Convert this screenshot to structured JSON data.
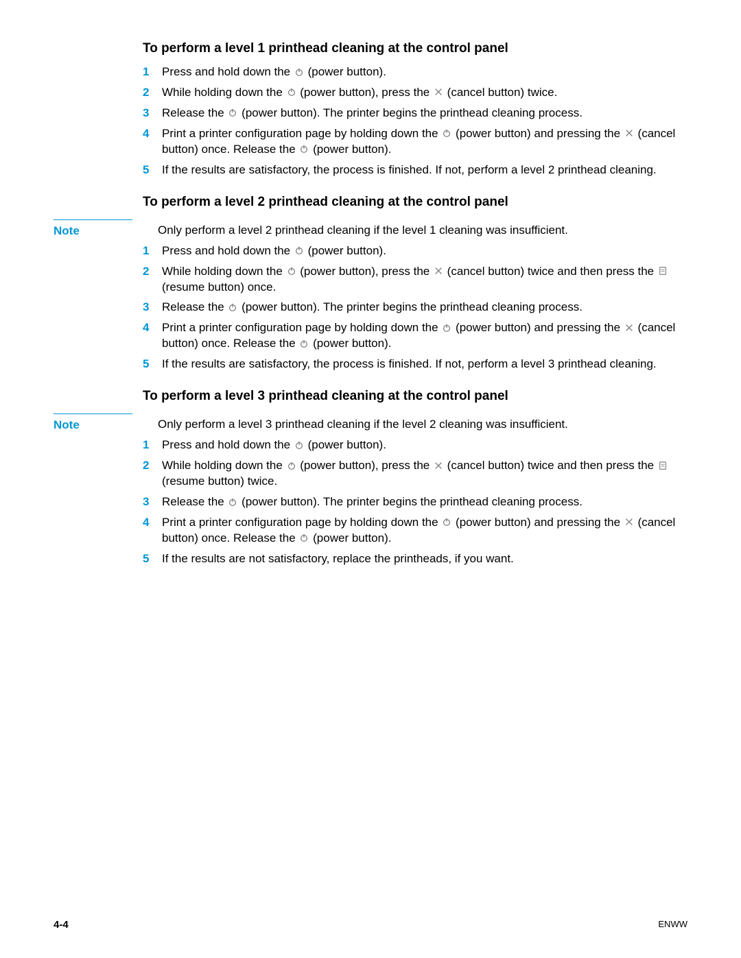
{
  "colors": {
    "accent": "#0096d6",
    "text": "#000000",
    "icon": "#808080"
  },
  "icons": {
    "power": "power-icon",
    "cancel": "cancel-icon",
    "resume": "resume-icon"
  },
  "sections": [
    {
      "heading": "To perform a level 1 printhead cleaning at the control panel",
      "note": null,
      "steps": [
        {
          "n": "1",
          "parts": [
            "Press and hold down the ",
            {
              "icon": "power"
            },
            " (power button)."
          ]
        },
        {
          "n": "2",
          "parts": [
            "While holding down the ",
            {
              "icon": "power"
            },
            " (power button), press the ",
            {
              "icon": "cancel"
            },
            " (cancel button) twice."
          ]
        },
        {
          "n": "3",
          "parts": [
            "Release the ",
            {
              "icon": "power"
            },
            " (power button). The printer begins the printhead cleaning process."
          ]
        },
        {
          "n": "4",
          "parts": [
            "Print a printer configuration page by holding down the ",
            {
              "icon": "power"
            },
            " (power button) and pressing the ",
            {
              "icon": "cancel"
            },
            " (cancel button) once. Release the ",
            {
              "icon": "power"
            },
            " (power button)."
          ]
        },
        {
          "n": "5",
          "parts": [
            "If the results are satisfactory, the process is finished. If not, perform a level 2 printhead cleaning."
          ]
        }
      ]
    },
    {
      "heading": "To perform a level 2 printhead cleaning at the control panel",
      "note": "Only perform a level 2 printhead cleaning if the level 1 cleaning was insufficient.",
      "steps": [
        {
          "n": "1",
          "parts": [
            "Press and hold down the ",
            {
              "icon": "power"
            },
            " (power button)."
          ]
        },
        {
          "n": "2",
          "parts": [
            "While holding down the ",
            {
              "icon": "power"
            },
            " (power button), press the ",
            {
              "icon": "cancel"
            },
            " (cancel button) twice and then press the ",
            {
              "icon": "resume"
            },
            " (resume button) once."
          ]
        },
        {
          "n": "3",
          "parts": [
            "Release the ",
            {
              "icon": "power"
            },
            " (power button). The printer begins the printhead cleaning process."
          ]
        },
        {
          "n": "4",
          "parts": [
            "Print a printer configuration page by holding down the ",
            {
              "icon": "power"
            },
            " (power button) and pressing the ",
            {
              "icon": "cancel"
            },
            " (cancel button) once. Release the ",
            {
              "icon": "power"
            },
            " (power button)."
          ]
        },
        {
          "n": "5",
          "parts": [
            "If the results are satisfactory, the process is finished. If not, perform a level 3 printhead cleaning."
          ]
        }
      ]
    },
    {
      "heading": "To perform a level 3 printhead cleaning at the control panel",
      "note": "Only perform a level 3 printhead cleaning if the level 2 cleaning was insufficient.",
      "steps": [
        {
          "n": "1",
          "parts": [
            "Press and hold down the ",
            {
              "icon": "power"
            },
            " (power button)."
          ]
        },
        {
          "n": "2",
          "parts": [
            "While holding down the ",
            {
              "icon": "power"
            },
            " (power button), press the ",
            {
              "icon": "cancel"
            },
            " (cancel button) twice and then press the ",
            {
              "icon": "resume"
            },
            " (resume button) twice."
          ]
        },
        {
          "n": "3",
          "parts": [
            "Release the ",
            {
              "icon": "power"
            },
            " (power button). The printer begins the printhead cleaning process."
          ]
        },
        {
          "n": "4",
          "parts": [
            "Print a printer configuration page by holding down the ",
            {
              "icon": "power"
            },
            " (power button) and pressing the ",
            {
              "icon": "cancel"
            },
            " (cancel button) once. Release the ",
            {
              "icon": "power"
            },
            " (power button)."
          ]
        },
        {
          "n": "5",
          "parts": [
            "If the results are not satisfactory, replace the printheads, if you want."
          ]
        }
      ]
    }
  ],
  "note_label": "Note",
  "footer": {
    "left": "4-4",
    "right": "ENWW"
  }
}
